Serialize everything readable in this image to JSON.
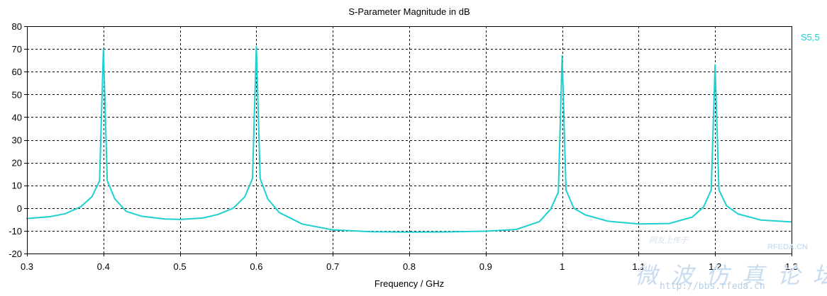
{
  "chart_data": {
    "type": "line",
    "title": "S-Parameter Magnitude in dB",
    "xlabel": "Frequency / GHz",
    "ylabel": "",
    "xlim": [
      0.3,
      1.3
    ],
    "ylim": [
      -20,
      80
    ],
    "x_ticks": [
      "0.3",
      "0.4",
      "0.5",
      "0.6",
      "0.7",
      "0.8",
      "0.9",
      "1",
      "1.1",
      "1.2",
      "1.3"
    ],
    "y_ticks": [
      "-20",
      "-10",
      "0",
      "10",
      "20",
      "30",
      "40",
      "50",
      "60",
      "70",
      "80"
    ],
    "grid": true,
    "legend_position": "top-right",
    "series": [
      {
        "name": "S5,5",
        "color": "#1fd0d0",
        "x": [
          0.3,
          0.33,
          0.35,
          0.37,
          0.385,
          0.395,
          0.4,
          0.405,
          0.415,
          0.43,
          0.45,
          0.48,
          0.5,
          0.53,
          0.55,
          0.57,
          0.585,
          0.595,
          0.6,
          0.605,
          0.615,
          0.63,
          0.66,
          0.7,
          0.75,
          0.8,
          0.85,
          0.9,
          0.94,
          0.97,
          0.985,
          0.995,
          1.0,
          1.005,
          1.015,
          1.03,
          1.06,
          1.1,
          1.14,
          1.17,
          1.185,
          1.195,
          1.2,
          1.205,
          1.215,
          1.23,
          1.26,
          1.3
        ],
        "values": [
          -4.6,
          -3.8,
          -2.5,
          0.5,
          5.0,
          12.0,
          70.0,
          12.0,
          4.0,
          -1.5,
          -3.6,
          -4.8,
          -5.0,
          -4.4,
          -2.8,
          0.0,
          5.0,
          13.0,
          71.0,
          13.0,
          4.0,
          -2.0,
          -7.0,
          -9.6,
          -10.4,
          -10.6,
          -10.5,
          -10.2,
          -9.4,
          -6.0,
          -0.5,
          7.0,
          67.0,
          8.0,
          0.0,
          -3.0,
          -5.8,
          -7.0,
          -6.8,
          -4.0,
          0.5,
          8.0,
          63.0,
          8.0,
          1.0,
          -2.6,
          -5.3,
          -6.1
        ]
      }
    ]
  },
  "watermark": {
    "site": "RFEDA.CN",
    "chinese": "微 波 仿 真 论 坛",
    "url": "http://bbs.rfeda.cn",
    "small": "网友上传于"
  }
}
